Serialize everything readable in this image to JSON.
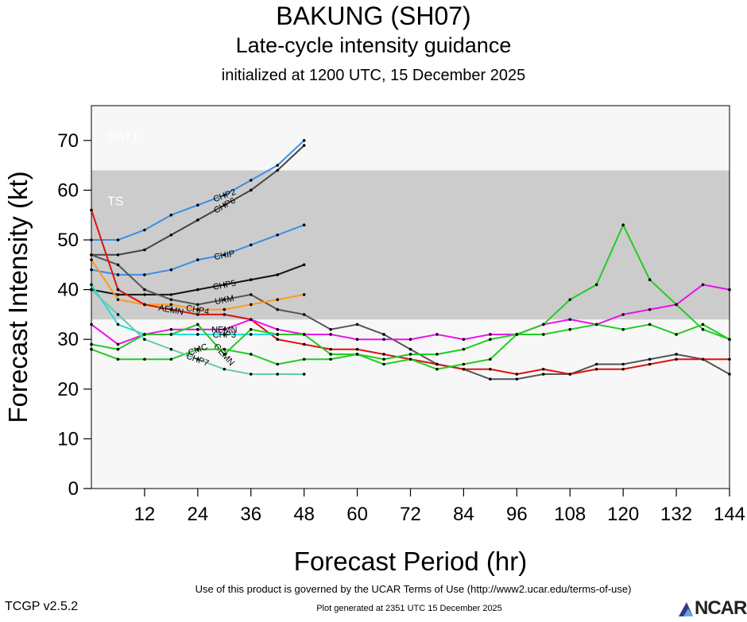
{
  "header": {
    "title": "BAKUNG (SH07)",
    "subtitle": "Late-cycle intensity guidance",
    "initialized": "initialized at 1200 UTC, 15 December 2025"
  },
  "footer": {
    "terms": "Use of this product is governed by the UCAR Terms of Use (http://www2.ucar.edu/terms-of-use)",
    "generated": "Plot generated at 2351 UTC   15 December 2025",
    "version": "TCGP v2.5.2",
    "logo": "NCAR"
  },
  "chart_data": {
    "type": "line",
    "xlabel": "Forecast Period (hr)",
    "ylabel": "Forecast Intensity (kt)",
    "xlim": [
      0,
      144
    ],
    "ylim": [
      0,
      77
    ],
    "xticks": [
      12,
      24,
      36,
      48,
      60,
      72,
      84,
      96,
      108,
      120,
      132,
      144
    ],
    "yticks": [
      0,
      10,
      20,
      30,
      40,
      50,
      60,
      70
    ],
    "bands": [
      {
        "label": "",
        "y0": 0,
        "y1": 34,
        "color": "#f7f7f7"
      },
      {
        "label": "TS",
        "y0": 34,
        "y1": 64,
        "color": "#cccccc"
      },
      {
        "label": "CAT1",
        "y0": 64,
        "y1": 77,
        "color": "#f7f7f7"
      }
    ],
    "series": [
      {
        "name": "CHP2",
        "color": "#3a8ee8",
        "label_x": 30,
        "x": [
          0,
          6,
          12,
          18,
          24,
          30,
          36,
          42,
          48
        ],
        "y": [
          50,
          50,
          52,
          55,
          57,
          59,
          62,
          65,
          70
        ]
      },
      {
        "name": "CHP6",
        "color": "#444444",
        "label_x": 30,
        "x": [
          0,
          6,
          12,
          18,
          24,
          30,
          36,
          42,
          48
        ],
        "y": [
          47,
          47,
          48,
          51,
          54,
          57,
          60,
          64,
          69
        ]
      },
      {
        "name": "CHIP",
        "color": "#3a8ee8",
        "label_x": 30,
        "x": [
          0,
          6,
          12,
          18,
          24,
          30,
          36,
          42,
          48
        ],
        "y": [
          44,
          43,
          43,
          44,
          46,
          47,
          49,
          51,
          53
        ]
      },
      {
        "name": "CHP5",
        "color": "#111111",
        "label_x": 30,
        "x": [
          0,
          6,
          12,
          18,
          24,
          30,
          36,
          42,
          48
        ],
        "y": [
          40,
          39,
          39,
          39,
          40,
          41,
          42,
          43,
          45
        ]
      },
      {
        "name": "UKM",
        "color": "#555555",
        "label_x": 30,
        "x": [
          0,
          6,
          12,
          18,
          24,
          30,
          36,
          42,
          48,
          54,
          60,
          66,
          72,
          78,
          84,
          90,
          96,
          102,
          108,
          114,
          120,
          126,
          132,
          138,
          144
        ],
        "y": [
          47,
          45,
          40,
          38,
          37,
          38,
          39,
          36,
          35,
          32,
          33,
          31,
          28,
          25,
          24,
          22,
          22,
          23,
          23,
          25,
          25,
          26,
          27,
          26,
          23
        ]
      },
      {
        "name": "CHP4",
        "color": "#ff9a1a",
        "label_x": 24,
        "x": [
          0,
          6,
          12,
          18,
          24,
          30,
          36,
          42,
          48
        ],
        "y": [
          46,
          38,
          37,
          37,
          36,
          36,
          37,
          38,
          39
        ]
      },
      {
        "name": "AEMN",
        "color": "#e01010",
        "label_x": 18,
        "x": [
          0,
          6,
          12,
          18,
          24,
          30,
          36,
          42,
          48,
          54,
          60,
          66,
          72,
          78,
          84,
          90,
          96,
          102,
          108,
          114,
          120,
          126,
          132,
          138,
          144
        ],
        "y": [
          56,
          40,
          37,
          36,
          35,
          35,
          34,
          30,
          29,
          28,
          28,
          27,
          26,
          25,
          24,
          24,
          23,
          24,
          23,
          24,
          24,
          25,
          26,
          26,
          26
        ]
      },
      {
        "name": "NEMN",
        "color": "#ee10ee",
        "label_x": 30,
        "x": [
          0,
          6,
          12,
          18,
          24,
          30,
          36,
          42,
          48,
          54,
          60,
          66,
          72,
          78,
          84,
          90,
          96,
          102,
          108,
          114,
          120,
          126,
          132,
          138,
          144
        ],
        "y": [
          33,
          29,
          31,
          32,
          32,
          32,
          34,
          32,
          31,
          31,
          30,
          30,
          30,
          31,
          30,
          31,
          31,
          33,
          34,
          33,
          35,
          36,
          37,
          41,
          40
        ]
      },
      {
        "name": "CHP3",
        "color": "#22dddd",
        "label_x": 30,
        "x": [
          0,
          6,
          12,
          18,
          24,
          30,
          36,
          42,
          48
        ],
        "y": [
          41,
          33,
          31,
          31,
          31,
          31,
          31,
          31,
          31
        ]
      },
      {
        "name": "GEMN",
        "color": "#22cc22",
        "label_x": 30,
        "x": [
          0,
          6,
          12,
          18,
          24,
          30,
          36,
          42,
          48,
          54,
          60,
          66,
          72,
          78,
          84,
          90,
          96,
          102,
          108,
          114,
          120,
          126,
          132,
          138,
          144
        ],
        "y": [
          29,
          28,
          31,
          31,
          33,
          27,
          32,
          31,
          31,
          27,
          27,
          25,
          26,
          24,
          25,
          26,
          31,
          31,
          32,
          33,
          32,
          33,
          31,
          33,
          30
        ]
      },
      {
        "name": "CMC",
        "color": "#22cc22",
        "label_x": 24,
        "x": [
          0,
          6,
          12,
          18,
          24,
          30,
          36,
          42,
          48,
          54,
          60,
          66,
          72,
          78,
          84,
          90,
          96,
          102,
          108,
          114,
          120,
          126,
          132,
          138,
          144
        ],
        "y": [
          28,
          26,
          26,
          26,
          28,
          28,
          27,
          25,
          26,
          26,
          27,
          26,
          27,
          27,
          28,
          30,
          31,
          33,
          38,
          41,
          53,
          42,
          37,
          32,
          30
        ]
      },
      {
        "name": "CHP7",
        "color": "#66ccaa",
        "label_x": 24,
        "x": [
          0,
          6,
          12,
          18,
          24,
          30,
          36,
          42,
          48
        ],
        "y": [
          40,
          35,
          30,
          28,
          26,
          24,
          23,
          23,
          23
        ]
      }
    ]
  }
}
